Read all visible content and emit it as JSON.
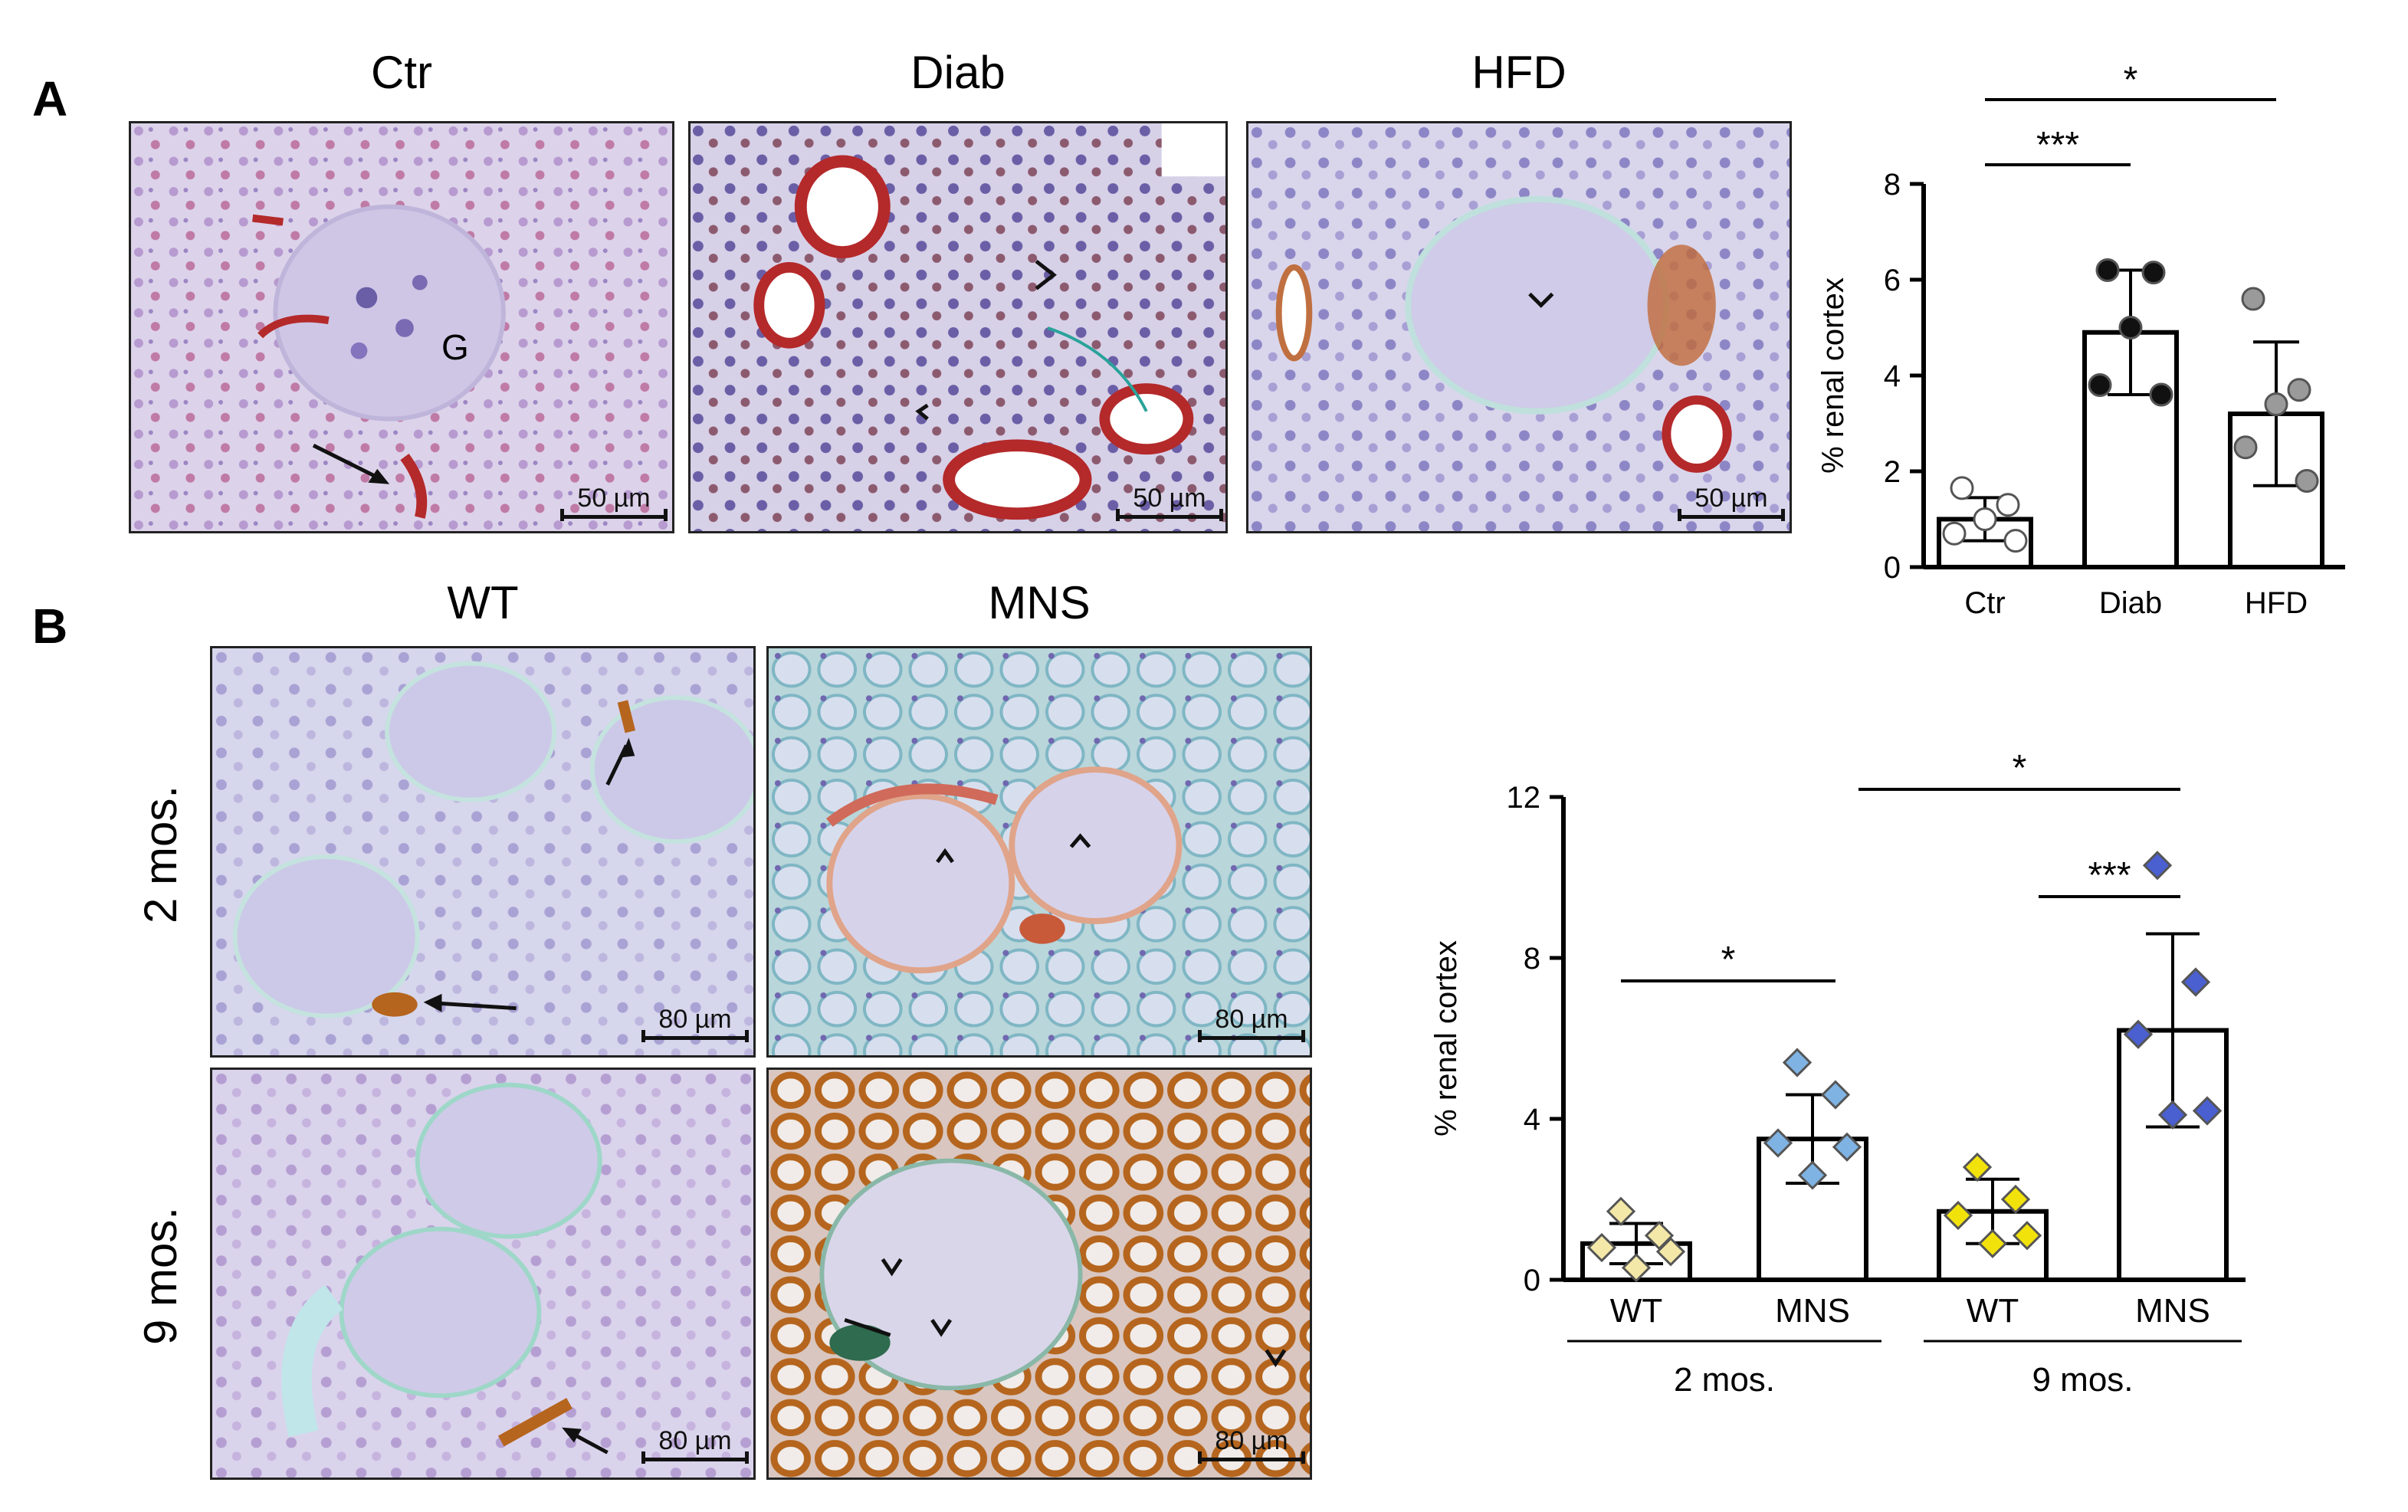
{
  "panels": {
    "a_letter": "A",
    "b_letter": "B"
  },
  "panel_a": {
    "columns": [
      "Ctr",
      "Diab",
      "HFD"
    ],
    "scale_label": "50 µm",
    "glomerulus_label": "G"
  },
  "panel_b": {
    "columns": [
      "WT",
      "MNS"
    ],
    "rows": [
      "2 mos.",
      "9 mos."
    ],
    "scale_label": "80 µm"
  },
  "colors": {
    "tissue_bg": "#d9d4ea",
    "nuclei": "#6a5fa6",
    "stain_red": "#b4292a",
    "stain_brown": "#b5651d",
    "ctr_point": "#ffffff",
    "diab_point": "#111111",
    "hfd_point": "#9a9a9a",
    "wt2_point": "#f4e8a8",
    "mns2_point": "#7fb3e3",
    "wt9_point": "#f2e20c",
    "mns9_point": "#4a5fd0"
  },
  "chart_data": [
    {
      "type": "bar",
      "categories": [
        "Ctr",
        "Diab",
        "HFD"
      ],
      "values": [
        1.0,
        4.9,
        3.2
      ],
      "error": [
        0.45,
        1.3,
        1.5
      ],
      "points": [
        [
          1.65,
          1.3,
          1.0,
          0.7,
          0.55
        ],
        [
          6.2,
          6.15,
          5.0,
          3.8,
          3.6
        ],
        [
          5.6,
          3.7,
          3.4,
          2.5,
          1.8
        ]
      ],
      "ylabel": "% renal cortex",
      "ylim": [
        0,
        8
      ],
      "yticks": [
        0,
        2,
        4,
        6,
        8
      ],
      "significance": [
        {
          "from": "Ctr",
          "to": "Diab",
          "label": "***"
        },
        {
          "from": "Ctr",
          "to": "HFD",
          "label": "*"
        }
      ]
    },
    {
      "type": "bar",
      "categories": [
        "WT",
        "MNS",
        "WT",
        "MNS"
      ],
      "groups": [
        "2 mos.",
        "9 mos."
      ],
      "values": [
        0.9,
        3.5,
        1.7,
        6.2
      ],
      "error": [
        0.5,
        1.1,
        0.8,
        2.4
      ],
      "points": [
        [
          1.7,
          1.1,
          0.8,
          0.7,
          0.3
        ],
        [
          5.4,
          4.6,
          3.4,
          3.3,
          2.6
        ],
        [
          2.8,
          2.0,
          1.6,
          1.1,
          0.9
        ],
        [
          10.3,
          7.4,
          6.1,
          4.2,
          4.1
        ]
      ],
      "ylabel": "% renal cortex",
      "ylim": [
        0,
        12
      ],
      "yticks": [
        0,
        4,
        8,
        12
      ],
      "significance": [
        {
          "from": "WT 2 mos.",
          "to": "MNS 2 mos.",
          "label": "*"
        },
        {
          "from": "WT 9 mos.",
          "to": "MNS 9 mos.",
          "label": "***"
        },
        {
          "from": "MNS 2 mos.",
          "to": "MNS 9 mos.",
          "label": "*"
        }
      ]
    }
  ]
}
